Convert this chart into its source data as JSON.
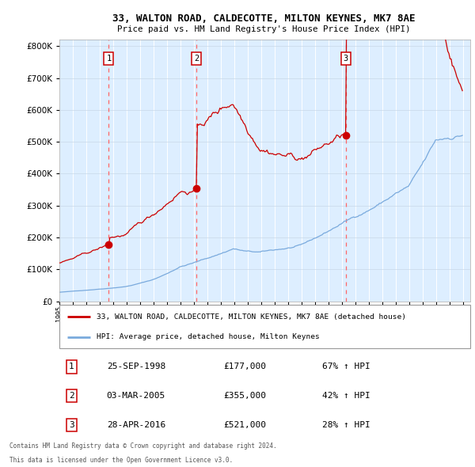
{
  "title1": "33, WALTON ROAD, CALDECOTTE, MILTON KEYNES, MK7 8AE",
  "title2": "Price paid vs. HM Land Registry's House Price Index (HPI)",
  "legend1": "33, WALTON ROAD, CALDECOTTE, MILTON KEYNES, MK7 8AE (detached house)",
  "legend2": "HPI: Average price, detached house, Milton Keynes",
  "transactions": [
    {
      "num": 1,
      "date": "25-SEP-1998",
      "price": 177000,
      "pct": "67%",
      "dir": "↑"
    },
    {
      "num": 2,
      "date": "03-MAR-2005",
      "price": 355000,
      "pct": "42%",
      "dir": "↑"
    },
    {
      "num": 3,
      "date": "28-APR-2016",
      "price": 521000,
      "pct": "28%",
      "dir": "↑"
    }
  ],
  "footer1": "Contains HM Land Registry data © Crown copyright and database right 2024.",
  "footer2": "This data is licensed under the Open Government Licence v3.0.",
  "red_color": "#cc0000",
  "blue_color": "#7aaadd",
  "bg_color": "#ddeeff",
  "grid_color": "#ffffff",
  "dashed_color": "#ff6666",
  "ylim_max": 820000,
  "ylim_min": 0
}
